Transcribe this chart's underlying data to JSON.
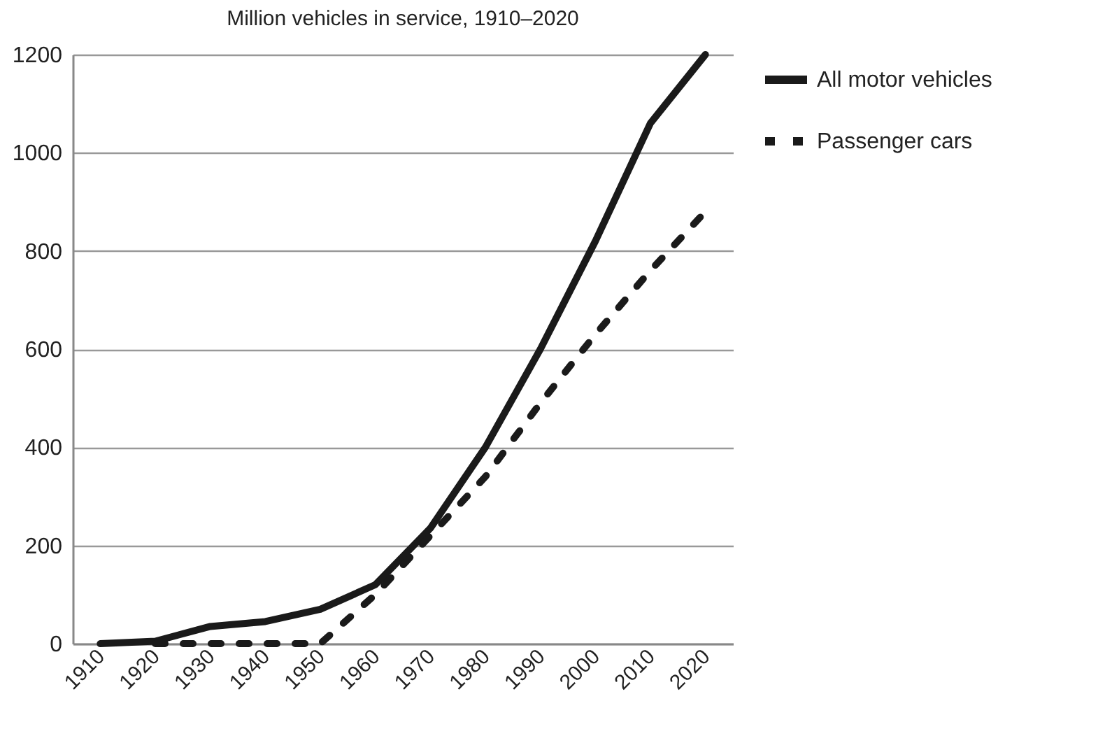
{
  "chart_data": {
    "type": "line",
    "title": "Million vehicles in service, 1910–2020",
    "categories": [
      "1910",
      "1920",
      "1930",
      "1940",
      "1950",
      "1960",
      "1970",
      "1980",
      "1990",
      "2000",
      "2010",
      "2020"
    ],
    "series": [
      {
        "name": "All motor vehicles",
        "color": "#1a1a1a",
        "line_style": "solid",
        "values": [
          0,
          5,
          35,
          45,
          70,
          120,
          235,
          400,
          600,
          820,
          1060,
          1200
        ]
      },
      {
        "name": "Passenger cars",
        "color": "#1a1a1a",
        "line_style": "dashed",
        "values": [
          null,
          0,
          0,
          0,
          0,
          100,
          220,
          340,
          490,
          630,
          760,
          880
        ]
      }
    ],
    "ylim": [
      0,
      1200
    ],
    "yticks": [
      0,
      200,
      400,
      600,
      800,
      1000,
      1200
    ],
    "grid": "y",
    "legend": "right",
    "marker": "none"
  }
}
